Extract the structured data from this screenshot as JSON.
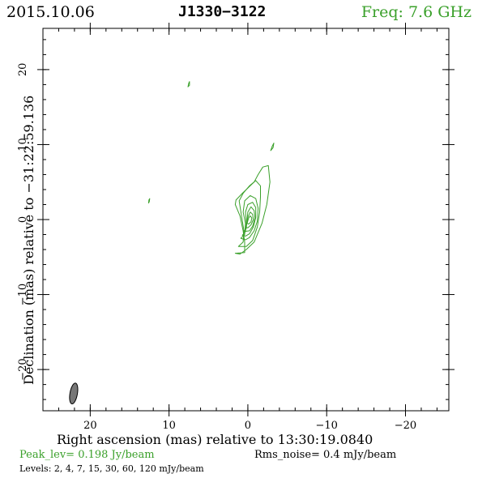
{
  "header": {
    "date": "2015.10.06",
    "source": "J1330−3122",
    "frequency": "Freq: 7.6 GHz"
  },
  "colors": {
    "contour": "#3aa02a",
    "axes": "#000000",
    "beam_fill": "#777777"
  },
  "chart_data": {
    "type": "contour",
    "title": "J1330−3122",
    "xlabel": "Right ascension (mas) relative to 13:30:19.0840",
    "ylabel": "Declination (mas) relative to −31:22:59.136",
    "xlim": [
      26,
      -25.5
    ],
    "ylim": [
      -25.5,
      25.5
    ],
    "x_ticks": [
      20,
      10,
      0,
      -10,
      -20
    ],
    "y_ticks": [
      20,
      10,
      0,
      -10,
      -20
    ],
    "x_tick_labels": [
      "20",
      "10",
      "0",
      "−10",
      "−20"
    ],
    "y_tick_labels": [
      "20",
      "10",
      "0",
      "−10",
      "−20"
    ],
    "x_minor_step": 2,
    "y_minor_step": 2,
    "peak_text": "Peak_lev=  0.198 Jy/beam",
    "rms_text": "Rms_noise=  0.4 mJy/beam",
    "levels_text": "Levels:   2,    4,    7,   15,   30,   60,  120 mJy/beam",
    "levels_mJy": [
      2,
      4,
      7,
      15,
      30,
      60,
      120
    ],
    "contours": [
      [
        [
          1.6,
          -4.5
        ],
        [
          0.4,
          -4.4
        ],
        [
          0.4,
          -3
        ],
        [
          0.6,
          -1.5
        ],
        [
          1.0,
          0.5
        ],
        [
          1.6,
          2
        ],
        [
          1.5,
          2.6
        ],
        [
          0.7,
          3.5
        ],
        [
          -0.8,
          5
        ],
        [
          -1.3,
          6
        ],
        [
          -1.9,
          7
        ],
        [
          -2.6,
          7.2
        ],
        [
          -2.8,
          5
        ],
        [
          -2.4,
          2
        ],
        [
          -1.8,
          -0.5
        ],
        [
          -0.8,
          -3
        ],
        [
          0.2,
          -4
        ],
        [
          1.0,
          -4.6
        ],
        [
          1.6,
          -4.5
        ]
      ],
      [
        [
          1.2,
          -3.6
        ],
        [
          0.6,
          -3
        ],
        [
          0.5,
          -1.5
        ],
        [
          0.8,
          0.5
        ],
        [
          1.1,
          2.5
        ],
        [
          0.6,
          3.5
        ],
        [
          -0.2,
          4.5
        ],
        [
          -1.0,
          5.2
        ],
        [
          -1.6,
          4.5
        ],
        [
          -1.6,
          3
        ],
        [
          -1.5,
          1
        ],
        [
          -1.2,
          -1
        ],
        [
          -0.6,
          -2.8
        ],
        [
          0.2,
          -3.6
        ],
        [
          1.2,
          -3.6
        ]
      ],
      [
        [
          0.9,
          -2.5
        ],
        [
          0.4,
          -2
        ],
        [
          0.3,
          -0.5
        ],
        [
          0.6,
          1
        ],
        [
          0.4,
          2.5
        ],
        [
          -0.3,
          3.2
        ],
        [
          -1.0,
          2.8
        ],
        [
          -1.3,
          1.5
        ],
        [
          -1.2,
          -0.2
        ],
        [
          -0.8,
          -1.5
        ],
        [
          -0.2,
          -2.4
        ],
        [
          0.3,
          -2.7
        ],
        [
          0.9,
          -2.5
        ]
      ],
      [
        [
          0.7,
          -2.1
        ],
        [
          0.3,
          -1.6
        ],
        [
          0.2,
          -0.3
        ],
        [
          0.3,
          1
        ],
        [
          0,
          2
        ],
        [
          -0.6,
          2.3
        ],
        [
          -1.0,
          1.6
        ],
        [
          -1.0,
          0.3
        ],
        [
          -0.7,
          -1.0
        ],
        [
          -0.2,
          -1.9
        ],
        [
          0.3,
          -2.2
        ],
        [
          0.7,
          -2.1
        ]
      ],
      [
        [
          0.5,
          -1.6
        ],
        [
          0.2,
          -1.2
        ],
        [
          0.1,
          0
        ],
        [
          0,
          1
        ],
        [
          -0.4,
          1.7
        ],
        [
          -0.8,
          1.2
        ],
        [
          -0.9,
          0.2
        ],
        [
          -0.6,
          -0.9
        ],
        [
          -0.2,
          -1.5
        ],
        [
          0.5,
          -1.6
        ]
      ],
      [
        [
          0.3,
          -1.0
        ],
        [
          0.1,
          -0.5
        ],
        [
          0,
          0.3
        ],
        [
          -0.3,
          1.0
        ],
        [
          -0.6,
          0.7
        ],
        [
          -0.7,
          0
        ],
        [
          -0.4,
          -0.7
        ],
        [
          0,
          -1.1
        ],
        [
          0.3,
          -1.0
        ]
      ],
      [
        [
          0.1,
          -0.5
        ],
        [
          -0.1,
          0.2
        ],
        [
          -0.3,
          0.5
        ],
        [
          -0.5,
          0.2
        ],
        [
          -0.4,
          -0.3
        ],
        [
          -0.1,
          -0.6
        ],
        [
          0.1,
          -0.5
        ]
      ],
      [
        [
          -2.9,
          9.2
        ],
        [
          -3.1,
          9.8
        ],
        [
          -3.3,
          10.2
        ],
        [
          -3.2,
          9.6
        ],
        [
          -2.9,
          9.2
        ]
      ],
      [
        [
          7.6,
          17.7
        ],
        [
          7.5,
          18.2
        ],
        [
          7.4,
          18.4
        ],
        [
          7.4,
          17.9
        ],
        [
          7.6,
          17.7
        ]
      ],
      [
        [
          12.6,
          2.2
        ],
        [
          12.55,
          2.6
        ],
        [
          12.45,
          2.8
        ],
        [
          12.5,
          2.4
        ],
        [
          12.6,
          2.2
        ]
      ]
    ],
    "beam": {
      "x": 22.1,
      "y": -23.2,
      "major_mas": 2.8,
      "minor_mas": 1.0,
      "pa_deg": 10
    }
  }
}
